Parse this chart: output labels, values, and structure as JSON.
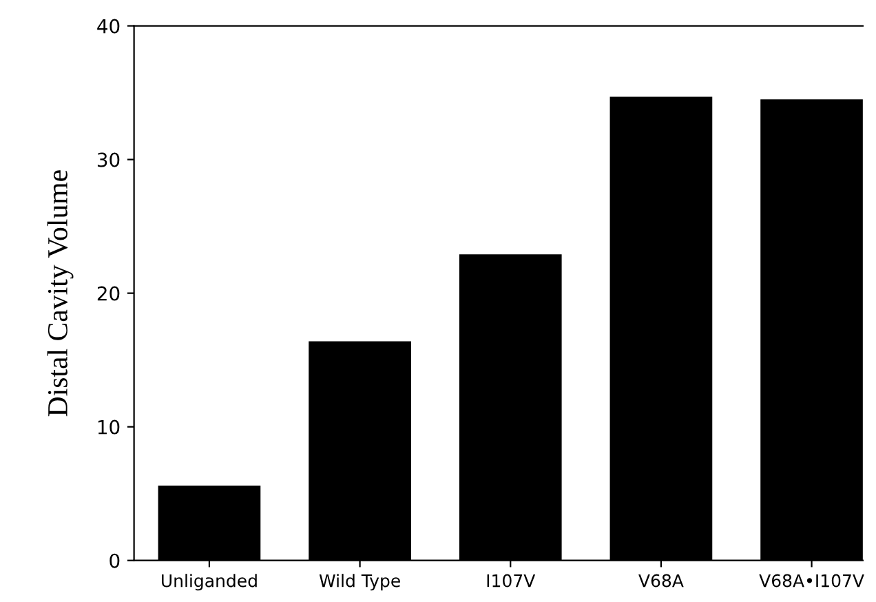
{
  "chart_data": {
    "type": "bar",
    "ylabel": "Distal Cavity Volume",
    "categories": [
      "Unliganded",
      "Wild Type",
      "I107V",
      "V68A",
      "V68A•I107V"
    ],
    "values": [
      5.6,
      16.4,
      22.9,
      34.7,
      34.5
    ],
    "color": "#000000",
    "ylim": [
      0,
      40
    ],
    "yticks": [
      0,
      10,
      20,
      30,
      40
    ],
    "grid": false,
    "legend": false
  }
}
